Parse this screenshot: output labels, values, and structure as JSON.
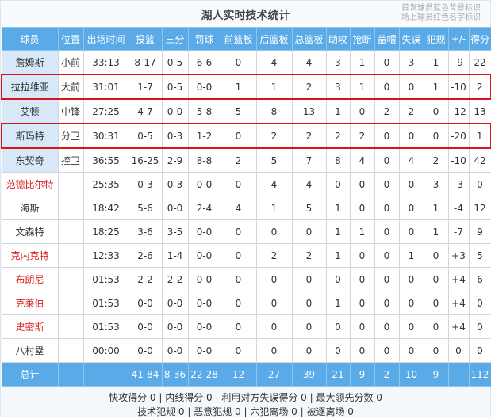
{
  "title": "湖人实时技术统计",
  "legend": [
    "首发球员蓝色背景标识",
    "场上球员红色名字标识"
  ],
  "colors": {
    "header_bg": "#5aaae8",
    "starter_bg": "#d7e9f8",
    "on_court_name": "#d22222",
    "highlight_border": "#d9141d"
  },
  "columns": [
    "球员",
    "位置",
    "出场时间",
    "投篮",
    "三分",
    "罚球",
    "前篮板",
    "后篮板",
    "总篮板",
    "助攻",
    "抢断",
    "盖帽",
    "失误",
    "犯规",
    "+/-",
    "得分"
  ],
  "rows": [
    {
      "cells": [
        "詹姆斯",
        "小前",
        "33:13",
        "8-17",
        "0-5",
        "6-6",
        "0",
        "4",
        "4",
        "3",
        "1",
        "0",
        "3",
        "1",
        "-9",
        "22"
      ],
      "starter": true,
      "on_court": false,
      "highlighted": false
    },
    {
      "cells": [
        "拉拉维亚",
        "大前",
        "31:01",
        "1-7",
        "0-5",
        "0-0",
        "1",
        "1",
        "2",
        "3",
        "1",
        "0",
        "0",
        "1",
        "-10",
        "2"
      ],
      "starter": true,
      "on_court": false,
      "highlighted": true
    },
    {
      "cells": [
        "艾顿",
        "中锋",
        "27:25",
        "4-7",
        "0-0",
        "5-8",
        "5",
        "8",
        "13",
        "1",
        "0",
        "2",
        "2",
        "0",
        "-12",
        "13"
      ],
      "starter": true,
      "on_court": false,
      "highlighted": false
    },
    {
      "cells": [
        "斯玛特",
        "分卫",
        "30:31",
        "0-5",
        "0-3",
        "1-2",
        "0",
        "2",
        "2",
        "2",
        "2",
        "0",
        "0",
        "0",
        "-20",
        "1"
      ],
      "starter": true,
      "on_court": false,
      "highlighted": true
    },
    {
      "cells": [
        "东契奇",
        "控卫",
        "36:55",
        "16-25",
        "2-9",
        "8-8",
        "2",
        "5",
        "7",
        "8",
        "4",
        "0",
        "4",
        "2",
        "-10",
        "42"
      ],
      "starter": true,
      "on_court": false,
      "highlighted": false
    },
    {
      "cells": [
        "范德比尔特",
        "",
        "25:35",
        "0-3",
        "0-3",
        "0-0",
        "0",
        "4",
        "4",
        "0",
        "0",
        "0",
        "0",
        "3",
        "-3",
        "0"
      ],
      "starter": false,
      "on_court": true,
      "highlighted": false
    },
    {
      "cells": [
        "海斯",
        "",
        "18:42",
        "5-6",
        "0-0",
        "2-4",
        "4",
        "1",
        "5",
        "1",
        "0",
        "0",
        "0",
        "1",
        "-4",
        "12"
      ],
      "starter": false,
      "on_court": false,
      "highlighted": false
    },
    {
      "cells": [
        "文森特",
        "",
        "18:25",
        "3-6",
        "3-5",
        "0-0",
        "0",
        "0",
        "0",
        "1",
        "1",
        "0",
        "0",
        "1",
        "-7",
        "9"
      ],
      "starter": false,
      "on_court": false,
      "highlighted": false
    },
    {
      "cells": [
        "克内克特",
        "",
        "12:33",
        "2-6",
        "1-4",
        "0-0",
        "0",
        "2",
        "2",
        "1",
        "0",
        "0",
        "1",
        "0",
        "+3",
        "5"
      ],
      "starter": false,
      "on_court": true,
      "highlighted": false
    },
    {
      "cells": [
        "布朗尼",
        "",
        "01:53",
        "2-2",
        "2-2",
        "0-0",
        "0",
        "0",
        "0",
        "0",
        "0",
        "0",
        "0",
        "0",
        "+4",
        "6"
      ],
      "starter": false,
      "on_court": true,
      "highlighted": false
    },
    {
      "cells": [
        "克莱伯",
        "",
        "01:53",
        "0-0",
        "0-0",
        "0-0",
        "0",
        "0",
        "0",
        "1",
        "0",
        "0",
        "0",
        "0",
        "+4",
        "0"
      ],
      "starter": false,
      "on_court": true,
      "highlighted": false
    },
    {
      "cells": [
        "史密斯",
        "",
        "01:53",
        "0-0",
        "0-0",
        "0-0",
        "0",
        "0",
        "0",
        "0",
        "0",
        "0",
        "0",
        "0",
        "+4",
        "0"
      ],
      "starter": false,
      "on_court": true,
      "highlighted": false
    },
    {
      "cells": [
        "八村塁",
        "",
        "00:00",
        "0-0",
        "0-0",
        "0-0",
        "0",
        "0",
        "0",
        "0",
        "0",
        "0",
        "0",
        "0",
        "0",
        "0"
      ],
      "starter": false,
      "on_court": false,
      "highlighted": false
    }
  ],
  "totals": [
    "总计",
    "",
    "-",
    "41-84",
    "8-36",
    "22-28",
    "12",
    "27",
    "39",
    "21",
    "9",
    "2",
    "10",
    "9",
    "",
    "112"
  ],
  "footer": [
    "快攻得分 0 | 内线得分 0 | 利用对方失误得分 0 | 最大领先分数 0",
    "技术犯规 0 | 恶意犯规 0 | 六犯离场 0 | 被逐离场 0"
  ]
}
